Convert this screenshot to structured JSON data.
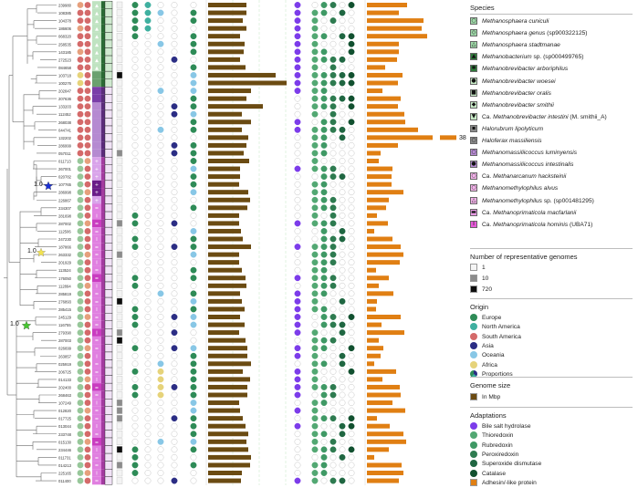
{
  "tree": {
    "taxa": [
      "239980",
      "108385",
      "104378",
      "186606",
      "068320",
      "258535",
      "143185",
      "272523",
      "084658",
      "103718",
      "100276",
      "202847",
      "207636",
      "133203",
      "112452",
      "268038",
      "044741",
      "132202",
      "286999",
      "057011",
      "011713",
      "267001",
      "020782",
      "107765",
      "286998",
      "226867",
      "234307",
      "281698",
      "287002",
      "112506",
      "247230",
      "187866",
      "263332",
      "201929",
      "113524",
      "176050",
      "112894",
      "285819",
      "276893",
      "285415",
      "245129",
      "116755",
      "279390",
      "287003",
      "026699",
      "263857",
      "025919",
      "206725",
      "014133",
      "202400",
      "268463",
      "107249",
      "012820",
      "017725",
      "013044",
      "233748",
      "015130",
      "234446",
      "011731",
      "014213",
      "225165",
      "011400"
    ],
    "bootstrap": [
      {
        "label": "1.0",
        "marker": "star",
        "color": "#1a2fd6"
      },
      {
        "label": "1.0",
        "marker": "star",
        "color": "#f2e250"
      },
      {
        "label": "1.0",
        "marker": "star",
        "color": "#45c72f"
      }
    ]
  },
  "adhesin_label": "38",
  "legend": {
    "species_title": "Species",
    "species": [
      {
        "pre": "",
        "it": "Methanosphaera cuniculi",
        "post": "",
        "color": "#9fd8a8",
        "glyph": "○"
      },
      {
        "pre": "",
        "it": "Methanosphaera genus",
        "post": " (sp900322125)",
        "color": "#9fd8a8",
        "glyph": "◇"
      },
      {
        "pre": "",
        "it": "Methanosphaera stadtmanae",
        "post": "",
        "color": "#9fd8a8",
        "glyph": "△"
      },
      {
        "pre": "",
        "it": "Methanobacterium",
        "post": " sp. (sp000499765)",
        "color": "#2f7a3b",
        "glyph": "▲"
      },
      {
        "pre": "",
        "it": "Methanobrevibacter arboriphilus",
        "post": "",
        "color": "#2f7a3b",
        "glyph": "✱"
      },
      {
        "pre": "",
        "it": "Methanobrevibacter woesei",
        "post": "",
        "color": "#c9ecc8",
        "glyph": "●"
      },
      {
        "pre": "",
        "it": "Methanobrevibacter oralis",
        "post": "",
        "color": "#c9ecc8",
        "glyph": "■"
      },
      {
        "pre": "",
        "it": "Methanobrevibacter smithii",
        "post": "",
        "color": "#c9ecc8",
        "glyph": "◆"
      },
      {
        "pre": "Ca. ",
        "it": "Methanobrevibacter intestini",
        "post": " (M. smithii_A)",
        "color": "#c9ecc8",
        "glyph": "▼"
      },
      {
        "pre": "",
        "it": "Halorubrum lipolyticum",
        "post": "",
        "color": "#8a8a8a",
        "glyph": "▪"
      },
      {
        "pre": "",
        "it": "Haloferax massiliensis",
        "post": "",
        "color": "#8a8a8a",
        "glyph": "○"
      },
      {
        "pre": "",
        "it": "Methanomassiliicoccus luminyensis",
        "post": "",
        "color": "#b58ad1",
        "glyph": "○"
      },
      {
        "pre": "",
        "it": "Methanomassiliicoccus intestinalis",
        "post": "",
        "color": "#b58ad1",
        "glyph": "●"
      },
      {
        "pre": "Ca. ",
        "it": "Methanarcanum hacksteinii",
        "post": "",
        "color": "#f3b4ea",
        "glyph": "○"
      },
      {
        "pre": "",
        "it": "Methanomethylophilus alvus",
        "post": "",
        "color": "#f3b4ea",
        "glyph": "○"
      },
      {
        "pre": "",
        "it": "Methanomethylophilus",
        "post": " sp. (sp001481295)",
        "color": "#f3b4ea",
        "glyph": "△"
      },
      {
        "pre": "Ca. ",
        "it": "Methanoprimaticola macfarlanii",
        "post": "",
        "color": "#e79be4",
        "glyph": "▬"
      },
      {
        "pre": "Ca. ",
        "it": "Methanoprimaticola hominis",
        "post": " (UBA71)",
        "color": "#e55ad8",
        "glyph": "I"
      }
    ],
    "genomes_title": "Number of representative genomes",
    "genomes": [
      {
        "label": "1",
        "color": "#f5f5f5"
      },
      {
        "label": "10",
        "color": "#8c8c8c"
      },
      {
        "label": "720",
        "color": "#0d0d0d"
      }
    ],
    "origin_title": "Origin",
    "origin": [
      {
        "label": "Europe",
        "color": "#2e8b57"
      },
      {
        "label": "North America",
        "color": "#3fb0a0"
      },
      {
        "label": "South America",
        "color": "#d46a6a"
      },
      {
        "label": "Asia",
        "color": "#2b2d84"
      },
      {
        "label": "Oceania",
        "color": "#88c7e6"
      },
      {
        "label": "Africa",
        "color": "#e6d37a"
      },
      {
        "label": "Proportions",
        "color": "pie"
      }
    ],
    "size_title": "Genome size",
    "size": [
      {
        "label": "In Mbp",
        "color": "#6b4b12"
      }
    ],
    "adapt_title": "Adaptations",
    "adapt": [
      {
        "label": "Bile salt hydrolase",
        "color": "#7c3cea",
        "shape": "circle"
      },
      {
        "label": "Thioredoxin",
        "color": "#53a873",
        "shape": "circle"
      },
      {
        "label": "Rubredoxin",
        "color": "#3f9965",
        "shape": "circle"
      },
      {
        "label": "Peroxiredoxin",
        "color": "#2e7b50",
        "shape": "circle"
      },
      {
        "label": "Superoxide dismutase",
        "color": "#1f6641",
        "shape": "circle"
      },
      {
        "label": "Catalase",
        "color": "#11502f",
        "shape": "circle"
      },
      {
        "label": "Adhesin/-like protein",
        "color": "#e07f13",
        "shape": "square"
      }
    ]
  }
}
